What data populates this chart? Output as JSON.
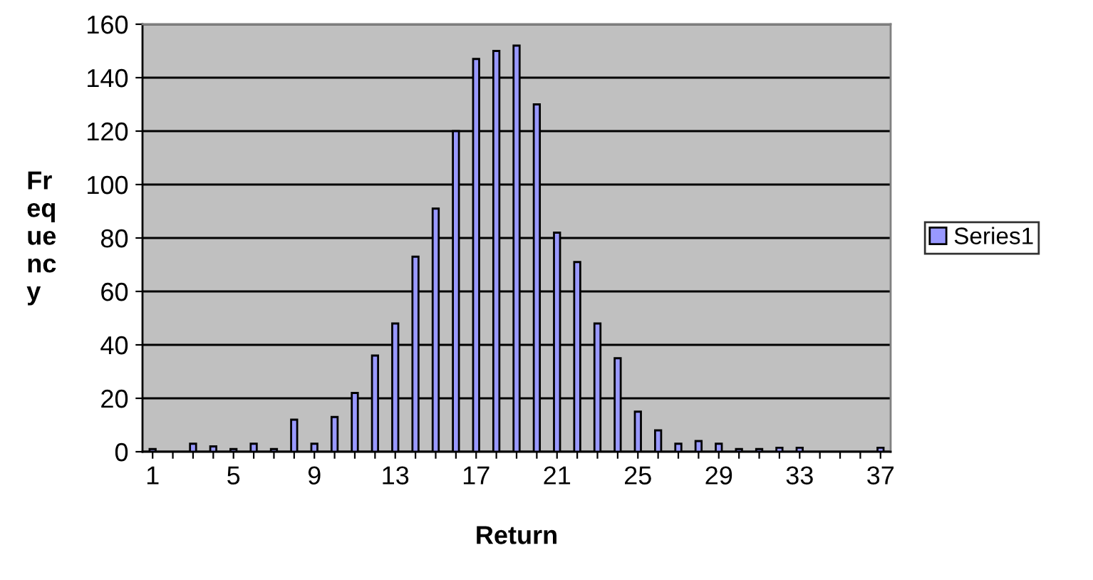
{
  "chart_data": {
    "type": "bar",
    "xlabel": "Return",
    "ylabel": "Frequency",
    "categories": [
      "1",
      null,
      null,
      null,
      "5",
      null,
      null,
      null,
      "9",
      null,
      null,
      null,
      "13",
      null,
      null,
      null,
      "17",
      null,
      null,
      null,
      "21",
      null,
      null,
      null,
      "25",
      null,
      null,
      null,
      "29",
      null,
      null,
      null,
      "33",
      null,
      null,
      null,
      "37"
    ],
    "series": [
      {
        "name": "Series1",
        "color": "#9999ff",
        "values": [
          1,
          0,
          3,
          2,
          1,
          3,
          1,
          12,
          3,
          13,
          22,
          36,
          48,
          73,
          91,
          120,
          147,
          150,
          152,
          130,
          82,
          71,
          48,
          35,
          15,
          8,
          3,
          4,
          3,
          1,
          1,
          1.5,
          1.5,
          0,
          0,
          0,
          1.5
        ]
      }
    ],
    "ylim": [
      0,
      160
    ],
    "yticks": [
      0,
      20,
      40,
      60,
      80,
      100,
      120,
      140,
      160
    ],
    "grid": "y",
    "legend": "right"
  }
}
